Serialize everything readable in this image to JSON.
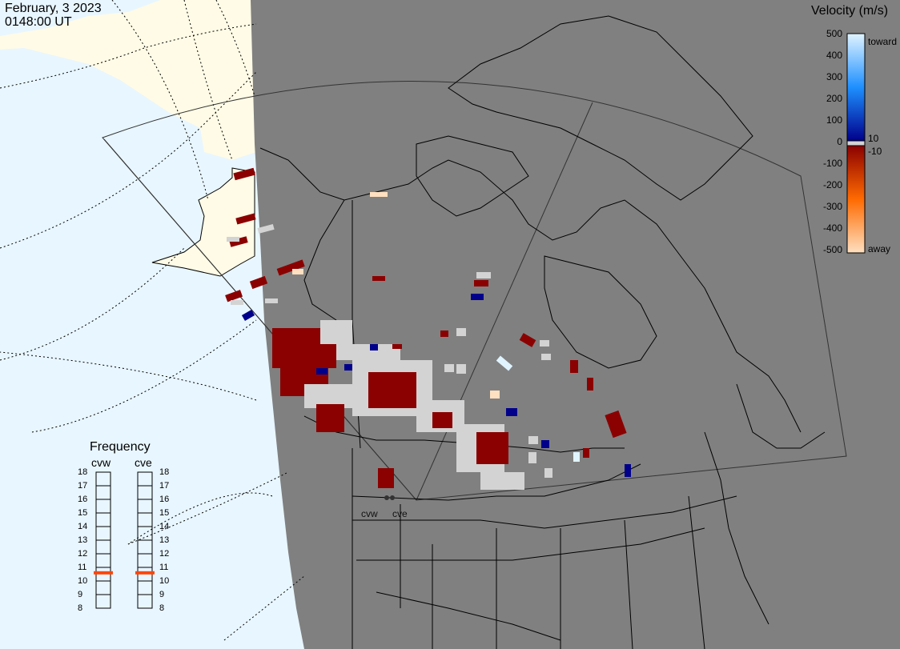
{
  "header": {
    "date": "February, 3 2023",
    "time": "0148:00 UT"
  },
  "velocity_legend": {
    "title": "Velocity (m/s)",
    "ticks": [
      "500",
      "400",
      "300",
      "200",
      "100",
      "0",
      "-100",
      "-200",
      "-300",
      "-400",
      "-500"
    ],
    "label_toward": "toward",
    "label_away": "away",
    "label_pos_threshold": "10",
    "label_neg_threshold": "-10",
    "colors": {
      "toward_strong": "#e0f4ff",
      "toward_mid": "#1e90ff",
      "toward_weak": "#00008b",
      "zero_band": "#d3d3d3",
      "away_weak": "#8b0000",
      "away_mid": "#ff6a00",
      "away_strong": "#ffe0c0"
    }
  },
  "frequency_panel": {
    "title": "Frequency",
    "radars": [
      {
        "name": "cvw",
        "frequency_mhz": 10.6
      },
      {
        "name": "cve",
        "frequency_mhz": 10.6
      }
    ],
    "scale": [
      "18",
      "17",
      "16",
      "15",
      "14",
      "13",
      "12",
      "11",
      "10",
      "9",
      "8"
    ],
    "marker_color": "#ff4500"
  },
  "map": {
    "ocean_color": "#e8f6ff",
    "land_day_color": "#fffbe6",
    "night_color": "#808080",
    "site_labels": [
      "cvw",
      "cve"
    ]
  }
}
